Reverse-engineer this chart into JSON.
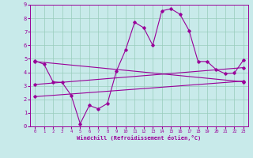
{
  "background_color": "#c8eaea",
  "plot_bg_color": "#c8eaea",
  "grid_color": "#98ccbb",
  "line_color": "#990099",
  "xlim": [
    -0.5,
    23.5
  ],
  "ylim": [
    0,
    9
  ],
  "xlabel": "Windchill (Refroidissement éolien,°C)",
  "xticks": [
    0,
    1,
    2,
    3,
    4,
    5,
    6,
    7,
    8,
    9,
    10,
    11,
    12,
    13,
    14,
    15,
    16,
    17,
    18,
    19,
    20,
    21,
    22,
    23
  ],
  "yticks": [
    0,
    1,
    2,
    3,
    4,
    5,
    6,
    7,
    8,
    9
  ],
  "curve_main_x": [
    0,
    1,
    2,
    3,
    4,
    5,
    6,
    7,
    8,
    9,
    10,
    11,
    12,
    13,
    14,
    15,
    16,
    17,
    18,
    19,
    20,
    21,
    22,
    23
  ],
  "curve_main_y": [
    4.85,
    4.6,
    3.3,
    3.25,
    2.3,
    0.2,
    1.55,
    1.3,
    1.7,
    4.1,
    5.65,
    7.7,
    7.3,
    6.0,
    8.55,
    8.7,
    8.3,
    7.1,
    4.8,
    4.8,
    4.2,
    3.9,
    3.95,
    4.9
  ],
  "curve_line1_x": [
    0,
    23
  ],
  "curve_line1_y": [
    4.8,
    3.3
  ],
  "curve_line2_x": [
    0,
    23
  ],
  "curve_line2_y": [
    3.1,
    4.35
  ],
  "curve_line3_x": [
    0,
    23
  ],
  "curve_line3_y": [
    2.2,
    3.35
  ]
}
